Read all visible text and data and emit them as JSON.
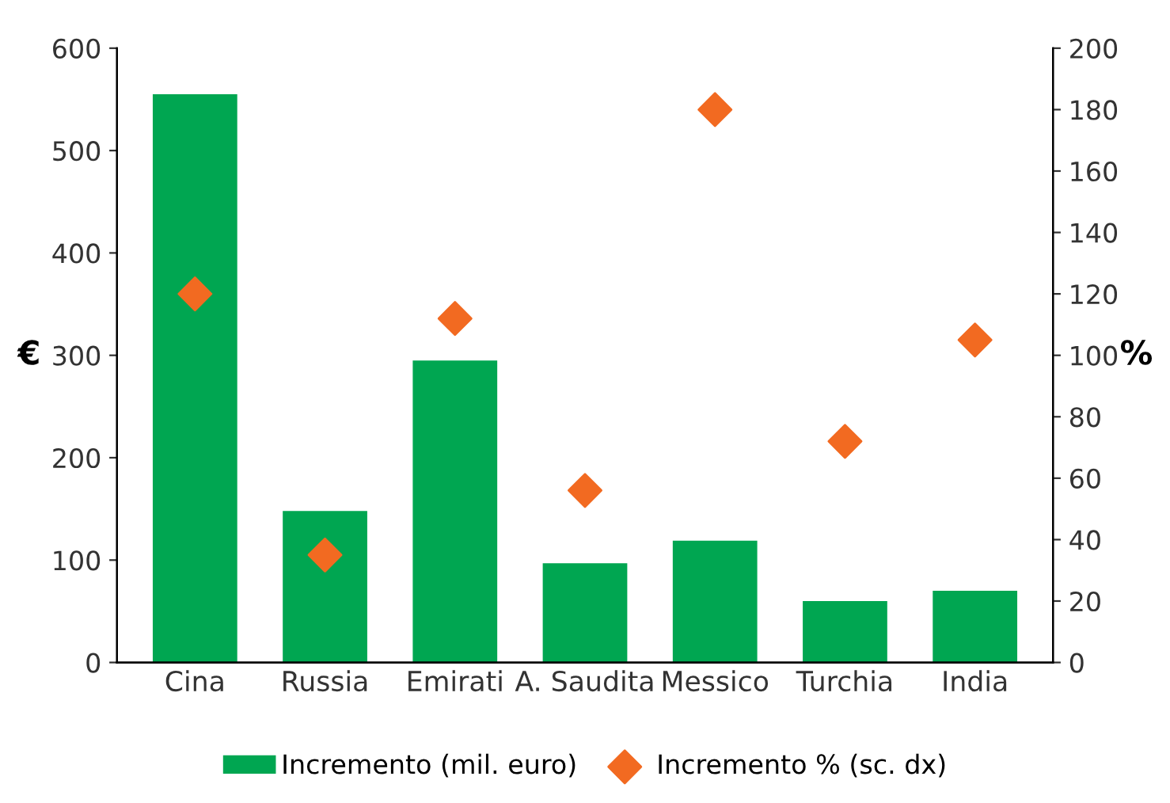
{
  "chart_data": {
    "type": "bar",
    "categories": [
      "Cina",
      "Russia",
      "Emirati",
      "A. Saudita",
      "Messico",
      "Turchia",
      "India"
    ],
    "series": [
      {
        "name": "Incremento (mil. euro)",
        "color": "#00a651",
        "values": [
          555,
          148,
          295,
          97,
          119,
          60,
          70
        ]
      },
      {
        "name": "Incremento % (sc. dx)",
        "type": "scatter",
        "axis": "y2",
        "marker": "diamond",
        "color": "#f26a21",
        "values": [
          120,
          35,
          112,
          56,
          180,
          72,
          105
        ]
      }
    ],
    "ylabel": "€",
    "y2label": "%",
    "ylim": [
      0,
      600
    ],
    "yticks": [
      0,
      100,
      200,
      300,
      400,
      500,
      600
    ],
    "y2lim": [
      0,
      200
    ],
    "y2ticks": [
      0,
      20,
      40,
      60,
      80,
      100,
      120,
      140,
      160,
      180,
      200
    ],
    "grid": false,
    "legend": "bottom"
  }
}
